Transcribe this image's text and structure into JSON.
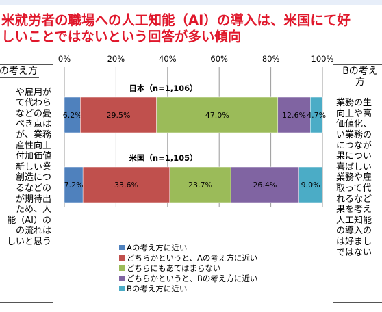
{
  "headline": {
    "line1": "米就労者の職場への人工知能（AI）の導入は、米国にて好",
    "line2": "しいことではないという回答が多い傾向"
  },
  "left_box": {
    "title": "の考え方",
    "body": "や雇用が\nて代わら\nなどの憂\nべき点は\nが、業務\n産性向上\n付加価値\n新しい業\n創造につ\nるなどの\nが期待出\nため、人\n能（AI）の\nの流れは\nしいと思う"
  },
  "right_box": {
    "title": "Bの考え方",
    "body": "業務の生\n向上や高\n価値化、\nい業務の\nにつなが\n果につい\n喜ばしい\n業務や雇\n取って代\nれるなど\n果を考え\n人工知能\nの導入の\nは好まし\nではない"
  },
  "chart_data": {
    "type": "bar",
    "orientation": "horizontal-stacked-100",
    "xlim": [
      0,
      100
    ],
    "x_ticks": [
      "0%",
      "20%",
      "40%",
      "60%",
      "80%",
      "100%"
    ],
    "grid": true,
    "legend_position": "bottom-left",
    "categories": [
      "日本（n=1,106）",
      "米国（n=1,105）"
    ],
    "series": [
      {
        "name": "Aの考え方に近い",
        "color": "#4f81bd",
        "values": [
          6.2,
          7.2
        ],
        "labels": [
          "6.2%",
          "7.2%"
        ]
      },
      {
        "name": "どちらかというと、Aの考え方に近い",
        "color": "#c0504d",
        "values": [
          29.5,
          33.6
        ],
        "labels": [
          "29.5%",
          "33.6%"
        ]
      },
      {
        "name": "どちらにもあてはまらない",
        "color": "#9bbb59",
        "values": [
          47.0,
          23.7
        ],
        "labels": [
          "47.0%",
          "23.7%"
        ]
      },
      {
        "name": "どちらかというと、Bの考え方に近い",
        "color": "#8064a2",
        "values": [
          12.6,
          26.4
        ],
        "labels": [
          "12.6%",
          "26.4%"
        ]
      },
      {
        "name": "Bの考え方に近い",
        "color": "#4bacc6",
        "values": [
          4.7,
          9.0
        ],
        "labels": [
          "4.7%",
          "9.0%"
        ]
      }
    ]
  }
}
